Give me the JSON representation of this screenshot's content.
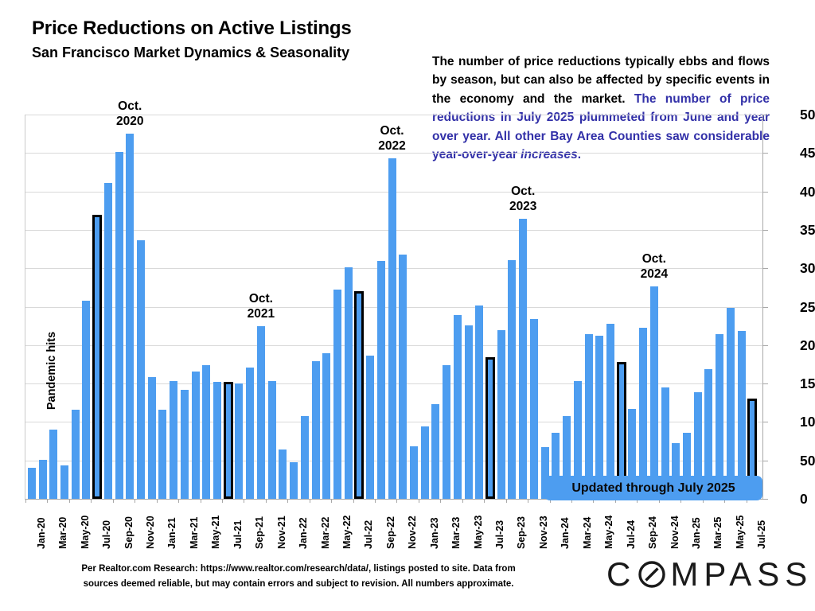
{
  "header": {
    "title": "Price Reductions on Active Listings",
    "subtitle": "San Francisco Market Dynamics & Seasonality"
  },
  "annotation": {
    "text_black": "The number of price reductions typically ebbs and flows by season, but can also be affected by specific events in the economy and the market. ",
    "text_blue": "The number of price reductions in July 2025 plummeted from June and year over year. All other Bay Area Counties saw considerable year-over-year ",
    "text_italic": "increases",
    "text_period": "."
  },
  "chart_data": {
    "type": "bar",
    "title": "Price Reductions on Active Listings",
    "xlabel": "",
    "ylabel": "",
    "ylim": [
      0,
      500
    ],
    "ytick_step": 50,
    "grid": true,
    "x": [
      "Jan-20",
      "Feb-20",
      "Mar-20",
      "Apr-20",
      "May-20",
      "Jun-20",
      "Jul-20",
      "Aug-20",
      "Sep-20",
      "Oct-20",
      "Nov-20",
      "Dec-20",
      "Jan-21",
      "Feb-21",
      "Mar-21",
      "Apr-21",
      "May-21",
      "Jun-21",
      "Jul-21",
      "Aug-21",
      "Sep-21",
      "Oct-21",
      "Nov-21",
      "Dec-21",
      "Jan-22",
      "Feb-22",
      "Mar-22",
      "Apr-22",
      "May-22",
      "Jun-22",
      "Jul-22",
      "Aug-22",
      "Sep-22",
      "Oct-22",
      "Nov-22",
      "Dec-22",
      "Jan-23",
      "Feb-23",
      "Mar-23",
      "Apr-23",
      "May-23",
      "Jun-23",
      "Jul-23",
      "Aug-23",
      "Sep-23",
      "Oct-23",
      "Nov-23",
      "Dec-23",
      "Jan-24",
      "Feb-24",
      "Mar-24",
      "Apr-24",
      "May-24",
      "Jun-24",
      "Jul-24",
      "Aug-24",
      "Sep-24",
      "Oct-24",
      "Nov-24",
      "Dec-24",
      "Jan-25",
      "Feb-25",
      "Mar-25",
      "Apr-25",
      "May-25",
      "Jun-25",
      "Jul-25"
    ],
    "values": [
      40,
      51,
      90,
      44,
      116,
      258,
      370,
      411,
      451,
      475,
      336,
      158,
      116,
      153,
      142,
      166,
      174,
      152,
      152,
      150,
      171,
      225,
      153,
      64,
      48,
      108,
      179,
      189,
      272,
      301,
      270,
      186,
      310,
      443,
      318,
      68,
      94,
      123,
      174,
      239,
      226,
      252,
      184,
      219,
      311,
      364,
      234,
      67,
      86,
      108,
      153,
      214,
      212,
      228,
      178,
      117,
      223,
      276,
      145,
      73,
      86,
      139,
      169,
      214,
      248,
      218,
      130
    ],
    "highlighted_x": [
      "Jul-20",
      "Jul-21",
      "Jul-22",
      "Jul-23",
      "Jul-24",
      "Jul-25"
    ],
    "bar_color": "#4D9DF0",
    "highlight_border_color": "#000000",
    "xlabel_every": 2,
    "legend": "none",
    "peak_annotations": [
      {
        "line1": "Oct.",
        "line2": "2020",
        "x": "Oct-20"
      },
      {
        "line1": "Oct.",
        "line2": "2021",
        "x": "Oct-21"
      },
      {
        "line1": "Oct.",
        "line2": "2022",
        "x": "Oct-22"
      },
      {
        "line1": "Oct.",
        "line2": "2023",
        "x": "Oct-23"
      },
      {
        "line1": "Oct.",
        "line2": "2024",
        "x": "Oct-24"
      }
    ],
    "pandemic_note": "Pandemic hits",
    "banner": "Updated through July 2025"
  },
  "footer": {
    "line1": "Per Realtor.com Research:  https://www.realtor.com/research/data/, listings posted to site. Data from",
    "line2": "sources deemed reliable, but may contain errors and subject to revision. All numbers approximate."
  },
  "logo": {
    "part1": "C",
    "part2": "MPASS"
  }
}
